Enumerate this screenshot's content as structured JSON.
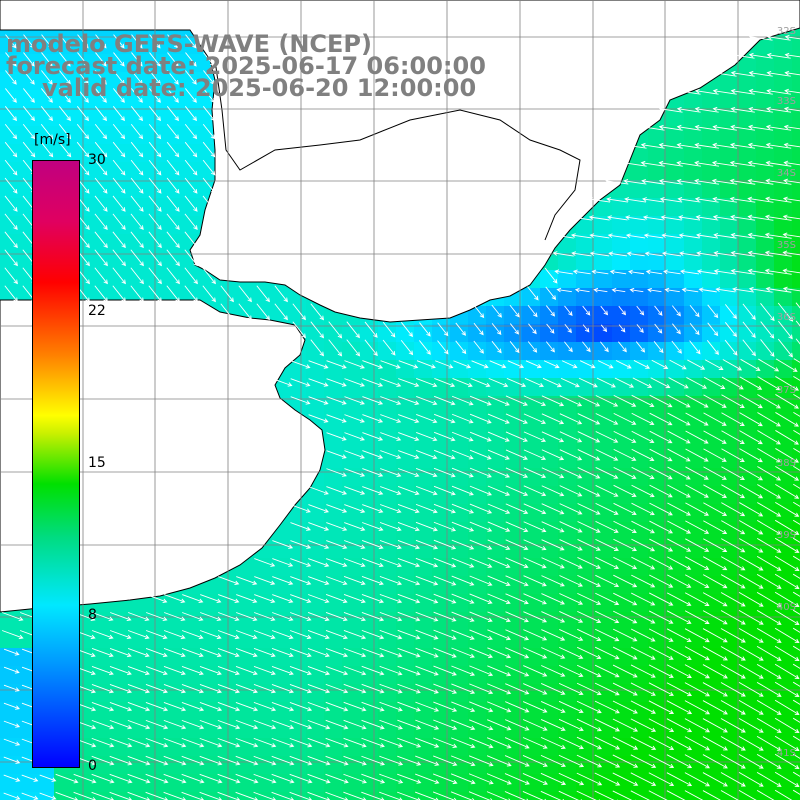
{
  "title": {
    "line1": "modelo GEFS-WAVE (NCEP)",
    "line2": "forecast date: 2025-06-17 06:00:00",
    "line3": "valid date: 2025-06-20 12:00:00"
  },
  "colorbar": {
    "unit": "[m/s]",
    "ticks": [
      "30",
      "22",
      "15",
      "8",
      "0"
    ],
    "min": 0,
    "max": 30
  },
  "latitude_labels": [
    "32S",
    "33S",
    "34S",
    "35S",
    "36S",
    "37S",
    "38S",
    "39S",
    "40S",
    "41S"
  ],
  "map": {
    "variable": "wind speed",
    "colors": {
      "land": "#ffffff",
      "coastline": "#000000",
      "grid": "#808080",
      "arrows": "#ffffff",
      "title": "#808080"
    },
    "regions": [
      {
        "name": "uruguay-coast",
        "speed": 7
      },
      {
        "name": "rio-de-la-plata",
        "speed": 1
      },
      {
        "name": "offshore-south",
        "speed": 11
      }
    ]
  }
}
